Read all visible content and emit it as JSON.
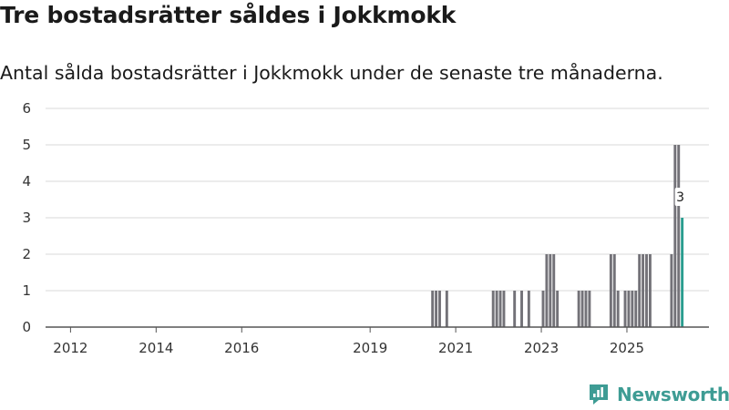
{
  "title": "Tre bostadsrätter såldes i Jokkmokk",
  "subtitle": "Antal sålda bostadsrätter i Jokkmokk under de senaste tre månaderna.",
  "brand": {
    "name": "Newsworthy",
    "color": "#3e9c94",
    "icon": "newsworthy-logo-icon"
  },
  "colors": {
    "bar": "#737278",
    "highlight": "#2a9d8f",
    "grid": "#d9d9d9",
    "axis": "#555555"
  },
  "chart_data": {
    "type": "bar",
    "title": "Tre bostadsrätter såldes i Jokkmokk",
    "subtitle": "Antal sålda bostadsrätter i Jokkmokk under de senaste tre månaderna.",
    "xlabel": "",
    "ylabel": "",
    "ylim": [
      0,
      6
    ],
    "yticks": [
      0,
      1,
      2,
      3,
      4,
      5,
      6
    ],
    "xlim": [
      "2011-06",
      "2026-12"
    ],
    "xticks": [
      {
        "label": "2012",
        "date": "2012-01"
      },
      {
        "label": "2014",
        "date": "2014-01"
      },
      {
        "label": "2016",
        "date": "2016-01"
      },
      {
        "label": "2019",
        "date": "2019-01"
      },
      {
        "label": "2021",
        "date": "2021-01"
      },
      {
        "label": "2023",
        "date": "2023-01"
      },
      {
        "label": "2025",
        "date": "2025-01"
      }
    ],
    "grid": true,
    "legend": "none",
    "bars": [
      {
        "date": "2020-06",
        "value": 1
      },
      {
        "date": "2020-07",
        "value": 1
      },
      {
        "date": "2020-08",
        "value": 1
      },
      {
        "date": "2020-10",
        "value": 1
      },
      {
        "date": "2021-11",
        "value": 1
      },
      {
        "date": "2021-12",
        "value": 1
      },
      {
        "date": "2022-01",
        "value": 1
      },
      {
        "date": "2022-02",
        "value": 1
      },
      {
        "date": "2022-05",
        "value": 1
      },
      {
        "date": "2022-07",
        "value": 1
      },
      {
        "date": "2022-09",
        "value": 1
      },
      {
        "date": "2023-01",
        "value": 1
      },
      {
        "date": "2023-02",
        "value": 2
      },
      {
        "date": "2023-03",
        "value": 2
      },
      {
        "date": "2023-04",
        "value": 2
      },
      {
        "date": "2023-05",
        "value": 1
      },
      {
        "date": "2023-11",
        "value": 1
      },
      {
        "date": "2023-12",
        "value": 1
      },
      {
        "date": "2024-01",
        "value": 1
      },
      {
        "date": "2024-02",
        "value": 1
      },
      {
        "date": "2024-08",
        "value": 2
      },
      {
        "date": "2024-09",
        "value": 2
      },
      {
        "date": "2024-10",
        "value": 1
      },
      {
        "date": "2024-12",
        "value": 1
      },
      {
        "date": "2025-01",
        "value": 1
      },
      {
        "date": "2025-02",
        "value": 1
      },
      {
        "date": "2025-03",
        "value": 1
      },
      {
        "date": "2025-04",
        "value": 2
      },
      {
        "date": "2025-05",
        "value": 2
      },
      {
        "date": "2025-06",
        "value": 2
      },
      {
        "date": "2025-07",
        "value": 2
      },
      {
        "date": "2026-01",
        "value": 2
      },
      {
        "date": "2026-02",
        "value": 5
      },
      {
        "date": "2026-03",
        "value": 5
      },
      {
        "date": "2026-04",
        "value": 3,
        "highlight": true,
        "label": "3"
      }
    ]
  }
}
